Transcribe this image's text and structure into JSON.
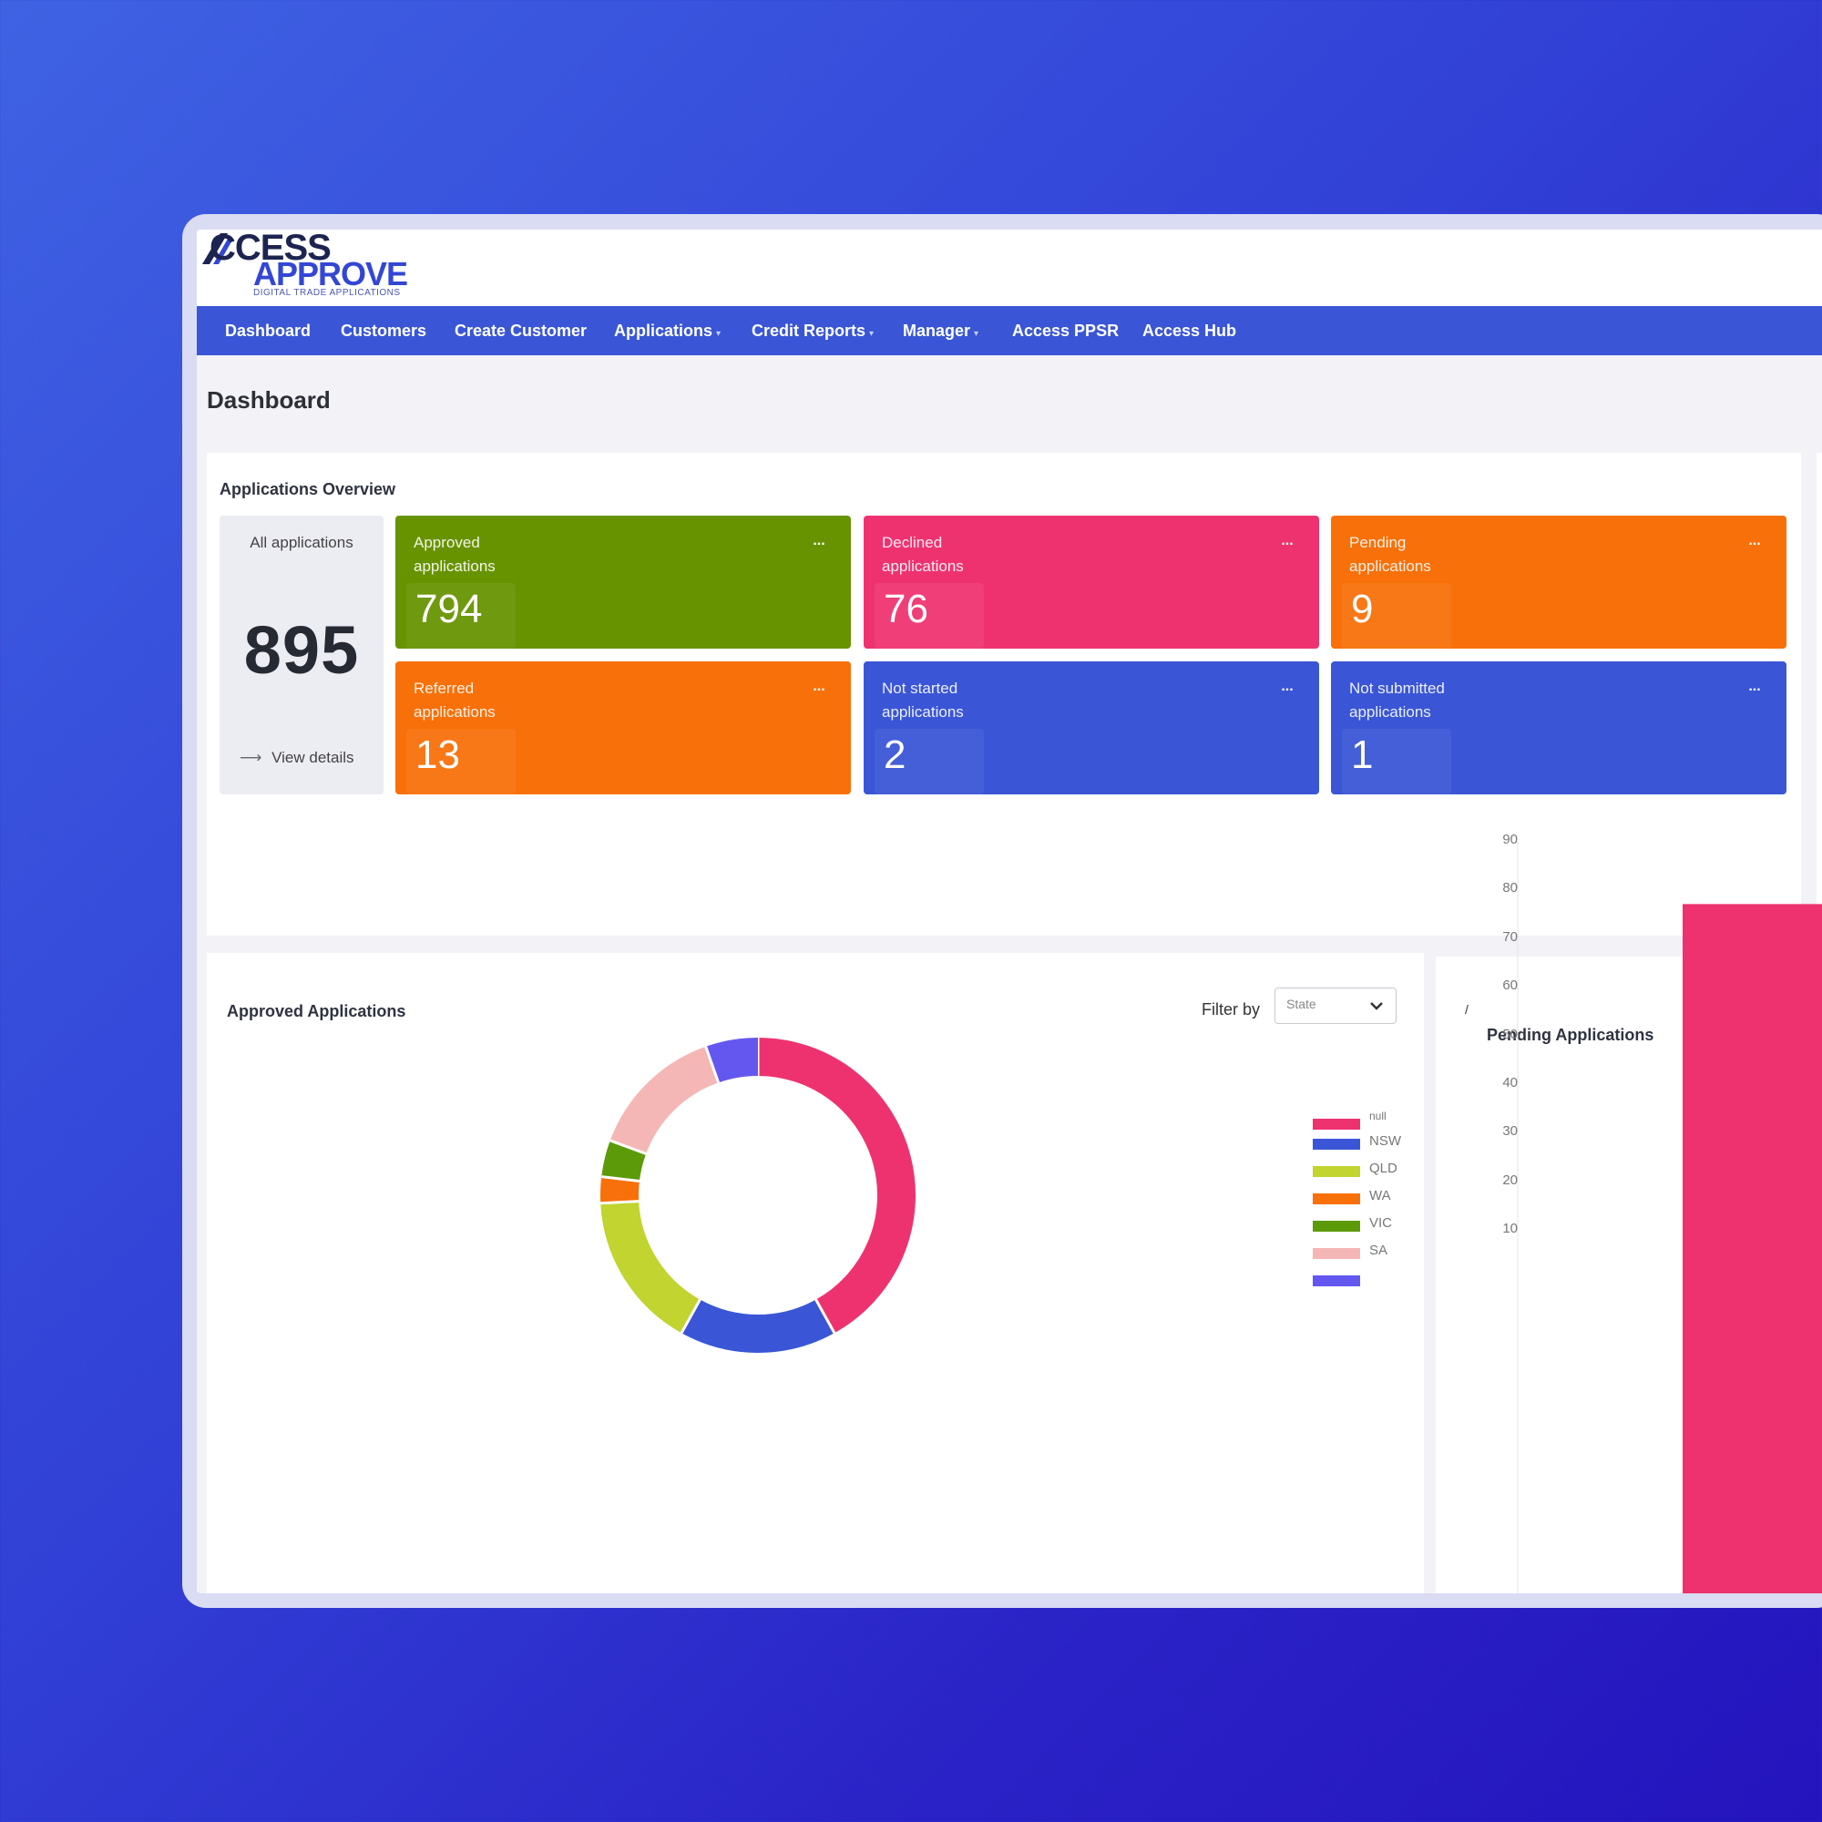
{
  "app": {
    "logo_top": "CCESS",
    "logo_bottom": "APPROVE",
    "logo_tagline": "DIGITAL TRADE APPLICATIONS"
  },
  "nav": {
    "items": [
      {
        "label": "Dashboard",
        "dropdown": false
      },
      {
        "label": "Customers",
        "dropdown": false
      },
      {
        "label": "Create Customer",
        "dropdown": false
      },
      {
        "label": "Applications",
        "dropdown": true
      },
      {
        "label": "Credit Reports",
        "dropdown": true
      },
      {
        "label": "Manager",
        "dropdown": true
      },
      {
        "label": "Access PPSR",
        "dropdown": false
      },
      {
        "label": "Access Hub",
        "dropdown": false
      }
    ]
  },
  "page": {
    "title": "Dashboard"
  },
  "overview": {
    "title": "Applications Overview",
    "all": {
      "label": "All applications",
      "value": "895",
      "view_details": "View details"
    },
    "tiles": [
      {
        "line1": "Approved",
        "line2": "applications",
        "value": "794",
        "color": "#679300"
      },
      {
        "line1": "Declined",
        "line2": "applications",
        "value": "76",
        "color": "#ee3270"
      },
      {
        "line1": "Pending",
        "line2": "applications",
        "value": "9",
        "color": "#f87009"
      },
      {
        "line1": "Referred",
        "line2": "applications",
        "value": "13",
        "color": "#f87009"
      },
      {
        "line1": "Not started",
        "line2": "applications",
        "value": "2",
        "color": "#3a56d6"
      },
      {
        "line1": "Not submitted",
        "line2": "applications",
        "value": "1",
        "color": "#3a56d6"
      }
    ],
    "more_icon": "..."
  },
  "approved_chart": {
    "title": "Approved Applications",
    "filter_label": "Filter by",
    "filter_value": "State"
  },
  "pending_chart": {
    "title": "Pending Applications",
    "marker": "/"
  },
  "chart_data": [
    {
      "type": "pie",
      "title": "Approved Applications",
      "donut": true,
      "legend": "right",
      "slices": [
        {
          "label": "null",
          "value": 39,
          "color": "#ee3270"
        },
        {
          "label": "NSW",
          "value": 15,
          "color": "#3a56d6"
        },
        {
          "label": "QLD",
          "value": 15,
          "color": "#c1d42f"
        },
        {
          "label": "WA",
          "value": 2.5,
          "color": "#f87009"
        },
        {
          "label": "VIC",
          "value": 3.5,
          "color": "#5c9a0a"
        },
        {
          "label": "SA",
          "value": 13,
          "color": "#f5b7b5"
        },
        {
          "label": "",
          "value": 5,
          "color": "#6457f0"
        }
      ]
    },
    {
      "type": "bar",
      "title": "Pending Applications",
      "ylim": [
        0,
        90
      ],
      "yticks": [
        90,
        80,
        70,
        60,
        50,
        40,
        30,
        20,
        10
      ],
      "grid": false,
      "categories": [
        ""
      ],
      "values": [
        77
      ],
      "color": "#ee3270"
    }
  ]
}
